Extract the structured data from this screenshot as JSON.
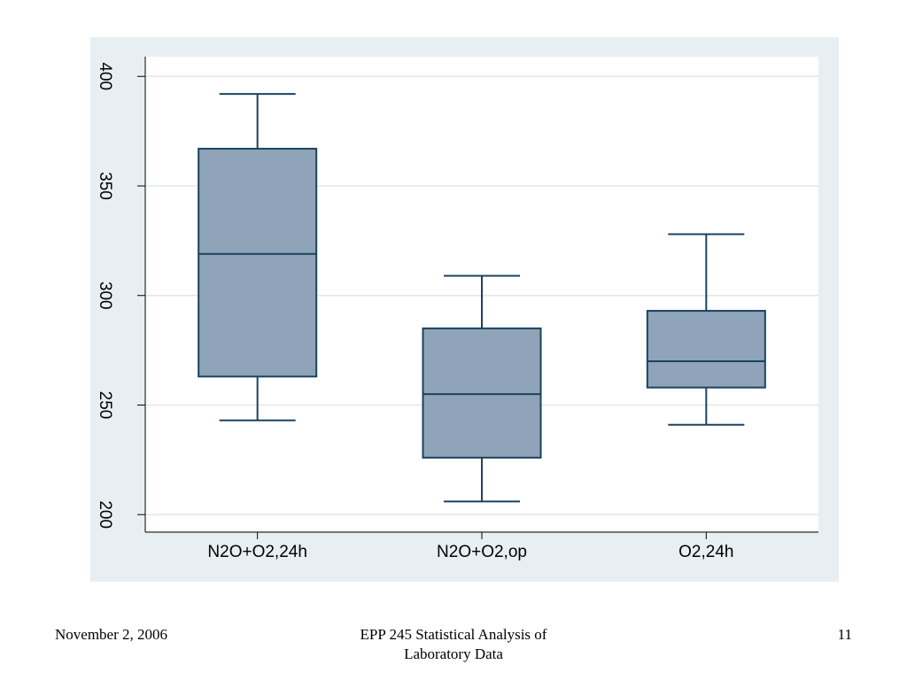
{
  "chart_data": {
    "type": "box",
    "title": "",
    "xlabel": "",
    "ylabel": "",
    "categories": [
      "N2O+O2,24h",
      "N2O+O2,op",
      "O2,24h"
    ],
    "boxes": [
      {
        "category": "N2O+O2,24h",
        "whisker_low": 243,
        "q1": 263,
        "median": 319,
        "q3": 367,
        "whisker_high": 392
      },
      {
        "category": "N2O+O2,op",
        "whisker_low": 206,
        "q1": 226,
        "median": 255,
        "q3": 285,
        "whisker_high": 309
      },
      {
        "category": "O2,24h",
        "whisker_low": 241,
        "q1": 258,
        "median": 270,
        "q3": 293,
        "whisker_high": 328
      }
    ],
    "yticks": [
      200,
      250,
      300,
      350,
      400
    ],
    "ylim": [
      192,
      409
    ],
    "grid": true,
    "colors": {
      "box_fill": "#8fa4b8",
      "box_stroke": "#1c4261",
      "grid": "#e6e6e6",
      "axis": "#000000"
    }
  },
  "footer": {
    "date": "November 2, 2006",
    "title_line1": "EPP 245 Statistical Analysis of",
    "title_line2": "Laboratory Data",
    "page": "11"
  }
}
